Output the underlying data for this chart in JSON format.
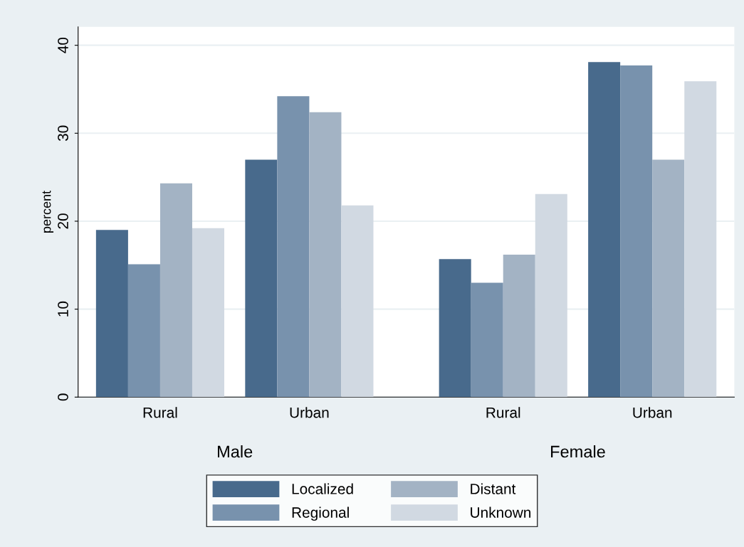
{
  "chart_data": {
    "type": "bar",
    "ylabel": "percent",
    "categories": [
      "Rural",
      "Urban",
      "Rural",
      "Urban"
    ],
    "series": [
      {
        "name": "Localized",
        "color": "#486a8c",
        "values": [
          19.0,
          27.0,
          15.7,
          38.1
        ]
      },
      {
        "name": "Regional",
        "color": "#7892ad",
        "values": [
          15.1,
          34.2,
          13.0,
          37.7
        ]
      },
      {
        "name": "Distant",
        "color": "#a3b3c4",
        "values": [
          24.3,
          32.4,
          16.2,
          27.0
        ]
      },
      {
        "name": "Unknown",
        "color": "#d1d9e2",
        "values": [
          19.2,
          21.8,
          23.1,
          35.9
        ]
      }
    ],
    "annotations": [
      "Male",
      "Female"
    ],
    "ylim": [
      0,
      42.1
    ],
    "yticks": [
      0,
      10,
      20,
      30,
      40
    ],
    "grid": "y",
    "legend": "bottom"
  }
}
